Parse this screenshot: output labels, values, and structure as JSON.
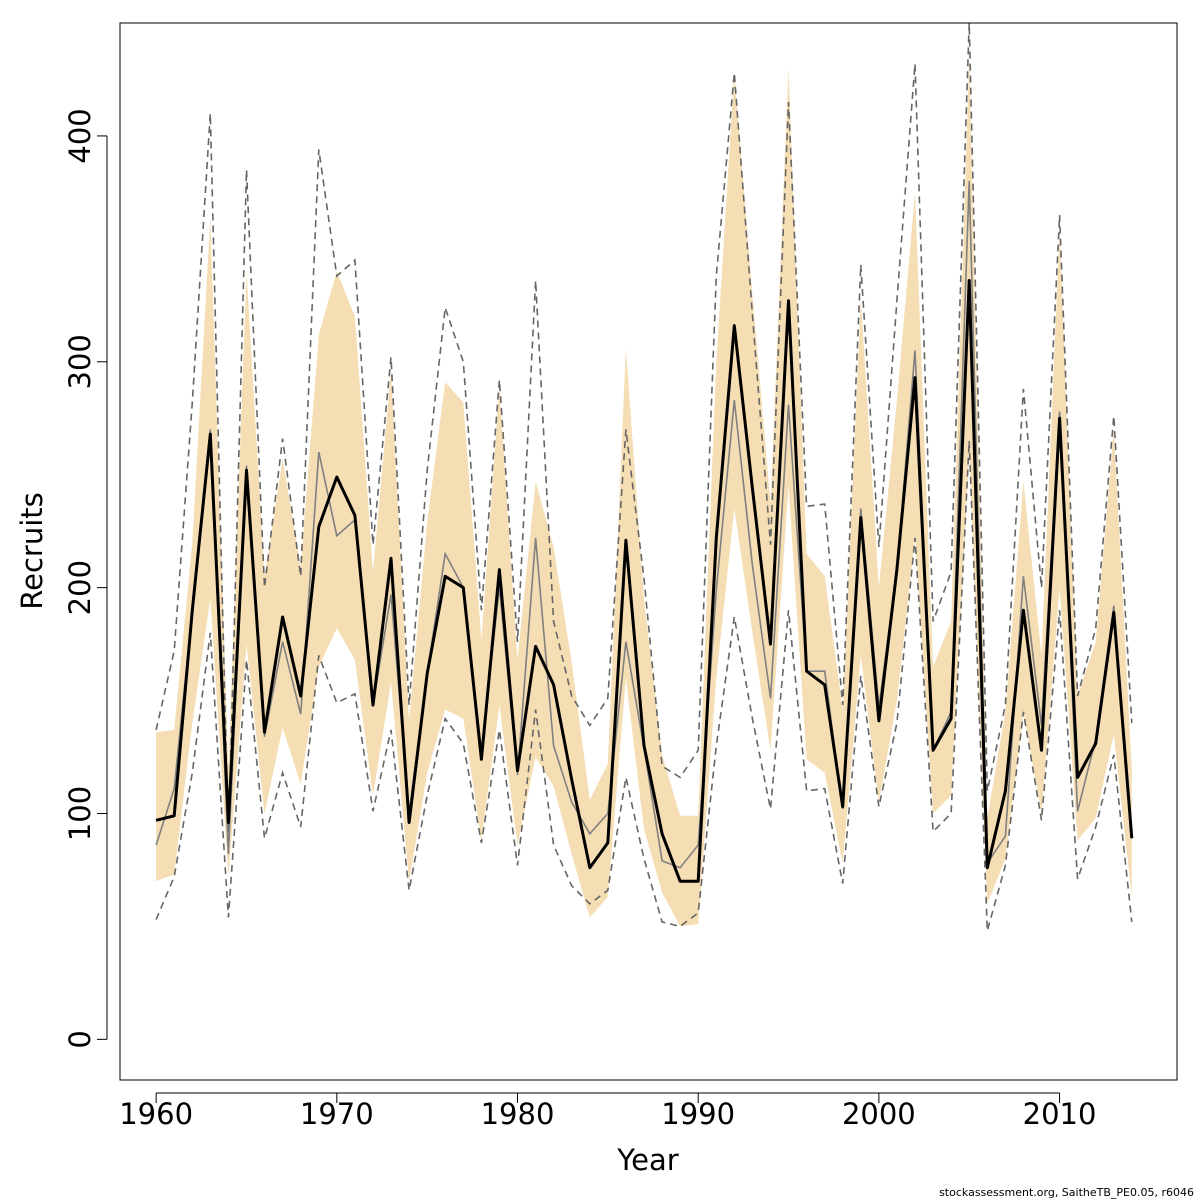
{
  "chart_data": {
    "type": "line",
    "xlabel": "Year",
    "ylabel": "Recruits",
    "xlim": [
      1958,
      2016.5
    ],
    "ylim": [
      -18,
      450
    ],
    "x_ticks": [
      1960,
      1970,
      1980,
      1990,
      2000,
      2010
    ],
    "y_ticks": [
      0,
      100,
      200,
      300,
      400
    ],
    "grid": false,
    "legend": "none",
    "footnote": "stockassessment.org, SaitheTB_PE0.05, r6046",
    "colors": {
      "band": "#f5deb3",
      "main_line": "#000000",
      "secondary_line": "#808080",
      "dashed": "#666666"
    },
    "x": [
      1960,
      1961,
      1962,
      1963,
      1964,
      1965,
      1966,
      1967,
      1968,
      1969,
      1970,
      1971,
      1972,
      1973,
      1974,
      1975,
      1976,
      1977,
      1978,
      1979,
      1980,
      1981,
      1982,
      1983,
      1984,
      1985,
      1986,
      1987,
      1988,
      1989,
      1990,
      1991,
      1992,
      1993,
      1994,
      1995,
      1996,
      1997,
      1998,
      1999,
      2000,
      2001,
      2002,
      2003,
      2004,
      2005,
      2006,
      2007,
      2008,
      2009,
      2010,
      2011,
      2012,
      2013,
      2014
    ],
    "series": [
      {
        "role": "estimate",
        "values": [
          97,
          99,
          190,
          268,
          96,
          252,
          136,
          187,
          152,
          227,
          249,
          232,
          148,
          213,
          96,
          162,
          205,
          200,
          124,
          208,
          119,
          174,
          157,
          115,
          76,
          87,
          221,
          130,
          91,
          70,
          70,
          222,
          316,
          244,
          175,
          327,
          163,
          157,
          103,
          231,
          141,
          208,
          293,
          128,
          142,
          336,
          76,
          110,
          190,
          128,
          275,
          116,
          131,
          189,
          89
        ]
      },
      {
        "role": "confidence_band_upper",
        "values": [
          136,
          137,
          220,
          364,
          120,
          340,
          205,
          257,
          209,
          312,
          340,
          320,
          207,
          296,
          141,
          229,
          291,
          282,
          177,
          289,
          168,
          247,
          218,
          167,
          106,
          122,
          306,
          195,
          126,
          99,
          99,
          300,
          428,
          330,
          237,
          430,
          215,
          205,
          146,
          328,
          200,
          283,
          375,
          165,
          185,
          435,
          98,
          145,
          247,
          170,
          358,
          152,
          176,
          270,
          120
        ]
      },
      {
        "role": "confidence_band_lower",
        "values": [
          70,
          73,
          140,
          195,
          72,
          175,
          100,
          138,
          113,
          165,
          182,
          168,
          108,
          158,
          70,
          118,
          146,
          142,
          88,
          148,
          86,
          125,
          112,
          82,
          54,
          63,
          160,
          93,
          65,
          50,
          51,
          160,
          235,
          180,
          128,
          245,
          124,
          118,
          78,
          170,
          105,
          150,
          222,
          100,
          108,
          260,
          60,
          80,
          145,
          100,
          200,
          88,
          98,
          135,
          63
        ]
      },
      {
        "role": "alternative_estimate",
        "values": [
          86,
          111,
          190,
          270,
          82,
          254,
          134,
          176,
          144,
          260,
          223,
          230,
          148,
          197,
          100,
          162,
          215,
          200,
          128,
          200,
          117,
          222,
          130,
          105,
          91,
          100,
          176,
          129,
          79,
          76,
          86,
          199,
          283,
          210,
          151,
          281,
          163,
          163,
          102,
          235,
          147,
          208,
          305,
          128,
          145,
          380,
          78,
          90,
          205,
          139,
          278,
          101,
          133,
          192,
          89
        ]
      },
      {
        "role": "alternative_upper",
        "values": [
          137,
          172,
          282,
          410,
          86,
          385,
          200,
          266,
          205,
          394,
          338,
          345,
          219,
          302,
          148,
          252,
          324,
          300,
          190,
          292,
          176,
          336,
          185,
          152,
          139,
          151,
          270,
          204,
          121,
          116,
          128,
          338,
          428,
          321,
          219,
          415,
          236,
          237,
          148,
          343,
          218,
          327,
          432,
          185,
          207,
          450,
          110,
          148,
          288,
          200,
          365,
          152,
          182,
          276,
          140
        ]
      },
      {
        "role": "alternative_lower",
        "values": [
          53,
          72,
          118,
          180,
          54,
          168,
          89,
          118,
          94,
          170,
          149,
          153,
          101,
          137,
          66,
          108,
          142,
          131,
          87,
          137,
          77,
          146,
          86,
          68,
          60,
          66,
          116,
          80,
          52,
          50,
          56,
          130,
          187,
          142,
          102,
          190,
          110,
          111,
          69,
          161,
          103,
          140,
          222,
          92,
          100,
          265,
          48,
          77,
          145,
          97,
          190,
          71,
          94,
          126,
          52
        ]
      }
    ]
  }
}
